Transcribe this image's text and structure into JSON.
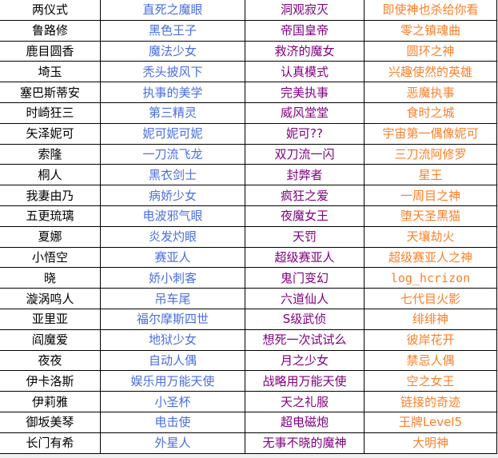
{
  "colors": {
    "name": "#000000",
    "col1": "#4a6ee0",
    "col2": "#800080",
    "col3": "#ff7f27"
  },
  "rows": [
    [
      "两仪式",
      "直死之魔眼",
      "洞观寂灭",
      "即使神也杀给你看"
    ],
    [
      "鲁路修",
      "黑色王子",
      "帝国皇帝",
      "零之镇魂曲"
    ],
    [
      "鹿目圆香",
      "魔法少女",
      "救济的魔女",
      "圆环之神"
    ],
    [
      "埼玉",
      "秃头披风下",
      "认真模式",
      "兴趣使然的英雄"
    ],
    [
      "塞巴斯蒂安",
      "执事的美学",
      "完美执事",
      "恶魔执事"
    ],
    [
      "时崎狂三",
      "第三精灵",
      "威风堂堂",
      "食时之城"
    ],
    [
      "矢泽妮可",
      "妮可妮可妮",
      "妮可??",
      "宇宙第一偶像妮可"
    ],
    [
      "索隆",
      "一刀流飞龙",
      "双刀流一闪",
      "三刀流阿修罗"
    ],
    [
      "桐人",
      "黑衣剑士",
      "封弊者",
      "星王"
    ],
    [
      "我妻由乃",
      "病娇少女",
      "疯狂之爱",
      "一周目之神"
    ],
    [
      "五更琉璃",
      "电波邪气眼",
      "夜魔女王",
      "堕天圣黑猫"
    ],
    [
      "夏娜",
      "炎发灼眼",
      "天罚",
      "天壤劫火"
    ],
    [
      "小悟空",
      "赛亚人",
      "超级赛亚人",
      "超级赛亚人之神"
    ],
    [
      "晓",
      "娇小刺客",
      "鬼门变幻",
      "log_hcrizon"
    ],
    [
      "漩涡鸣人",
      "吊车尾",
      "六道仙人",
      "七代目火影"
    ],
    [
      "亚里亚",
      "福尔摩斯四世",
      "S级武侦",
      "绯绯神"
    ],
    [
      "阎魔爱",
      "地狱少女",
      "想死一次试试么",
      "彼岸花开"
    ],
    [
      "夜夜",
      "自动人偶",
      "月之少女",
      "禁忌人偶"
    ],
    [
      "伊卡洛斯",
      "娱乐用万能天使",
      "战略用万能天使",
      "空之女王"
    ],
    [
      "伊莉雅",
      "小圣杯",
      "天之礼服",
      "链接的奇迹"
    ],
    [
      "御坂美琴",
      "电击使",
      "超电磁炮",
      "王牌Level5"
    ],
    [
      "长门有希",
      "外星人",
      "无事不晓的魔神",
      "大明神"
    ]
  ]
}
